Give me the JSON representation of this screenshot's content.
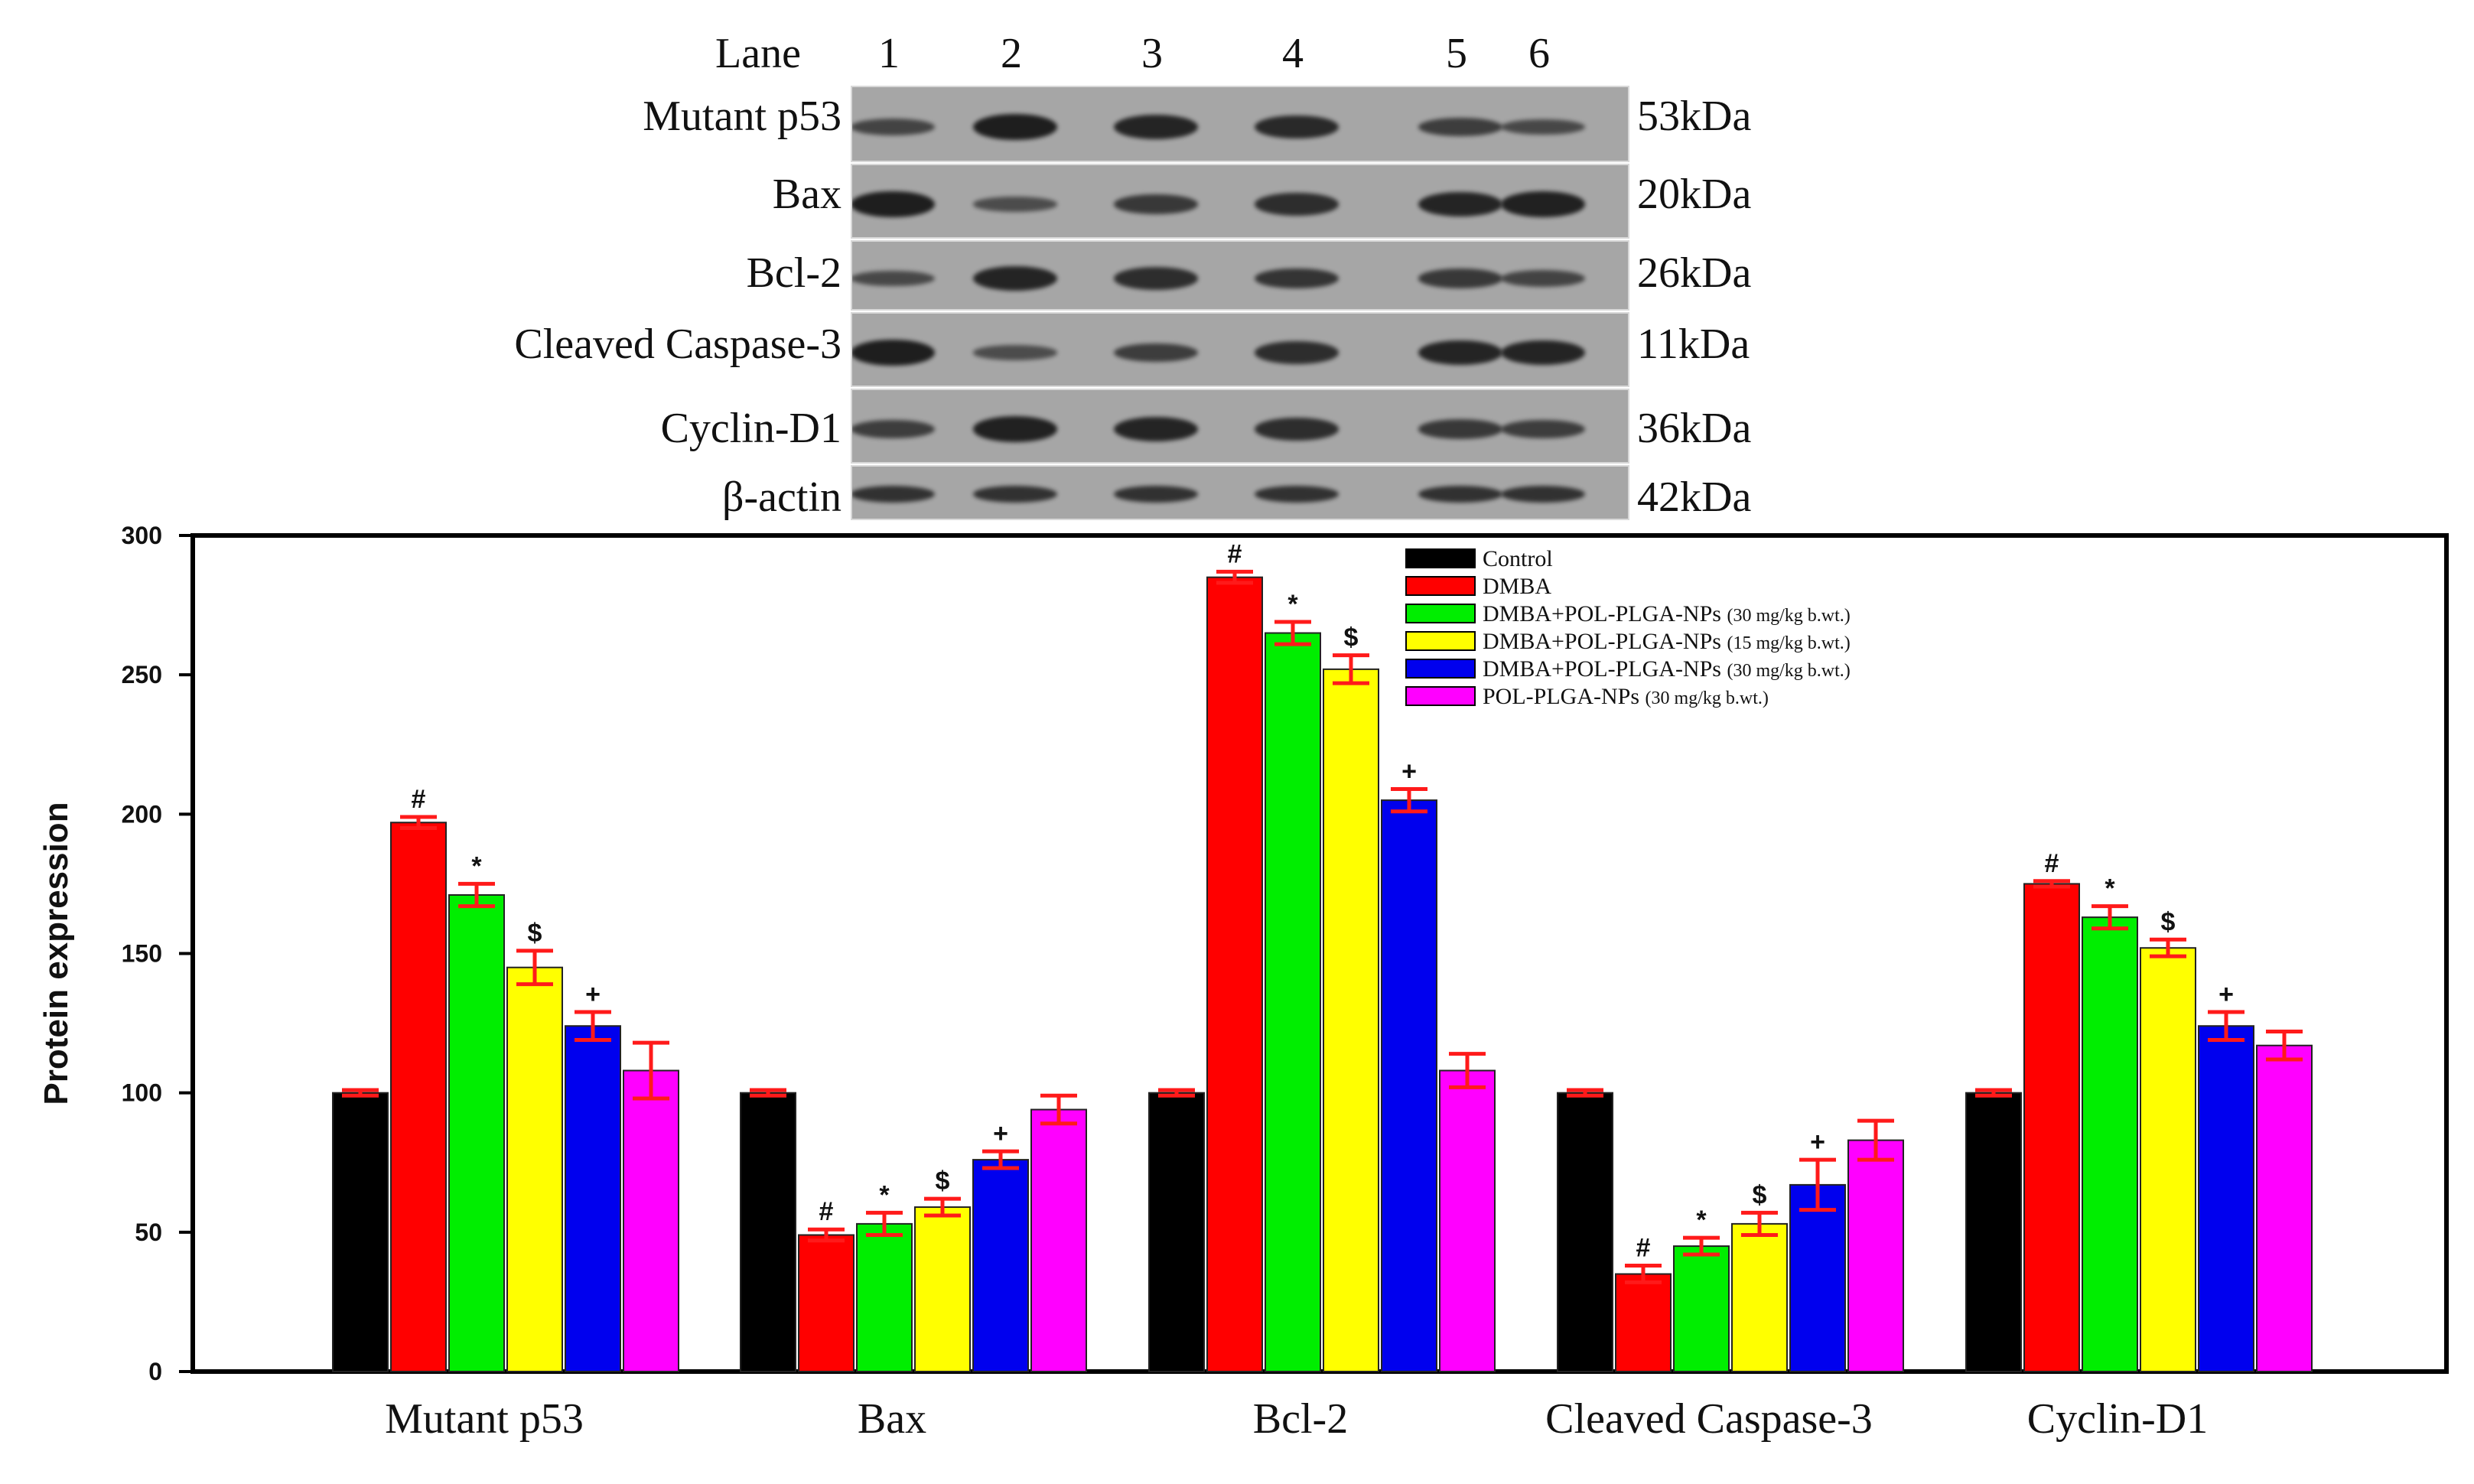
{
  "blot": {
    "lane_header": "Lane",
    "lanes": [
      "1",
      "2",
      "3",
      "4",
      "5",
      "6"
    ],
    "rows": [
      {
        "label": "Mutant p53",
        "kda": "53kDa",
        "intensity": [
          0.45,
          0.95,
          0.85,
          0.8,
          0.55,
          0.4
        ]
      },
      {
        "label": "Bax",
        "kda": "20kDa",
        "intensity": [
          0.95,
          0.35,
          0.6,
          0.75,
          0.85,
          0.9
        ]
      },
      {
        "label": "Bcl-2",
        "kda": "26kDa",
        "intensity": [
          0.4,
          0.85,
          0.75,
          0.65,
          0.6,
          0.45
        ]
      },
      {
        "label": "Cleaved Caspase-3",
        "kda": "11kDa",
        "intensity": [
          0.95,
          0.35,
          0.55,
          0.75,
          0.85,
          0.85
        ]
      },
      {
        "label": "Cyclin-D1",
        "kda": "36kDa",
        "intensity": [
          0.55,
          0.9,
          0.85,
          0.75,
          0.6,
          0.55
        ]
      },
      {
        "label": "β-actin",
        "kda": "42kDa",
        "intensity": [
          0.7,
          0.7,
          0.7,
          0.7,
          0.7,
          0.7
        ]
      }
    ]
  },
  "chart_data": {
    "type": "bar",
    "title": "",
    "xlabel": "",
    "ylabel": "Protein expression",
    "ylim": [
      0,
      300
    ],
    "yticks": [
      0,
      50,
      100,
      150,
      200,
      250,
      300
    ],
    "categories": [
      "Mutant p53",
      "Bax",
      "Bcl-2",
      "Cleaved Caspase-3",
      "Cyclin-D1"
    ],
    "legend_position": "top-right",
    "series": [
      {
        "name": "Control",
        "note": "",
        "color": "#000000",
        "values": [
          100,
          100,
          100,
          100,
          100
        ],
        "errors": [
          1,
          1,
          1,
          1,
          1
        ],
        "sig": [
          "",
          "",
          "",
          "",
          ""
        ]
      },
      {
        "name": "DMBA",
        "note": "",
        "color": "#ff0000",
        "values": [
          197,
          49,
          285,
          35,
          175
        ],
        "errors": [
          2,
          2,
          2,
          3,
          1
        ],
        "sig": [
          "#",
          "#",
          "#",
          "#",
          "#"
        ]
      },
      {
        "name": "DMBA+POL-PLGA-NPs",
        "note": "(30 mg/kg b.wt.)",
        "color": "#00ee00",
        "values": [
          171,
          53,
          265,
          45,
          163
        ],
        "errors": [
          4,
          4,
          4,
          3,
          4
        ],
        "sig": [
          "*",
          "*",
          "*",
          "*",
          "*"
        ]
      },
      {
        "name": "DMBA+POL-PLGA-NPs",
        "note": "(15 mg/kg b.wt.)",
        "color": "#ffff00",
        "values": [
          145,
          59,
          252,
          53,
          152
        ],
        "errors": [
          6,
          3,
          5,
          4,
          3
        ],
        "sig": [
          "$",
          "$",
          "$",
          "$",
          "$"
        ]
      },
      {
        "name": "DMBA+POL-PLGA-NPs",
        "note": "(30 mg/kg b.wt.)",
        "color": "#0000ee",
        "values": [
          124,
          76,
          205,
          67,
          124
        ],
        "errors": [
          5,
          3,
          4,
          9,
          5
        ],
        "sig": [
          "+",
          "+",
          "+",
          "+",
          "+"
        ]
      },
      {
        "name": "POL-PLGA-NPs",
        "note": "(30 mg/kg b.wt.)",
        "color": "#ff00ff",
        "values": [
          108,
          94,
          108,
          83,
          117
        ],
        "errors": [
          10,
          5,
          6,
          7,
          5
        ],
        "sig": [
          "",
          "",
          "",
          "",
          ""
        ]
      }
    ]
  }
}
